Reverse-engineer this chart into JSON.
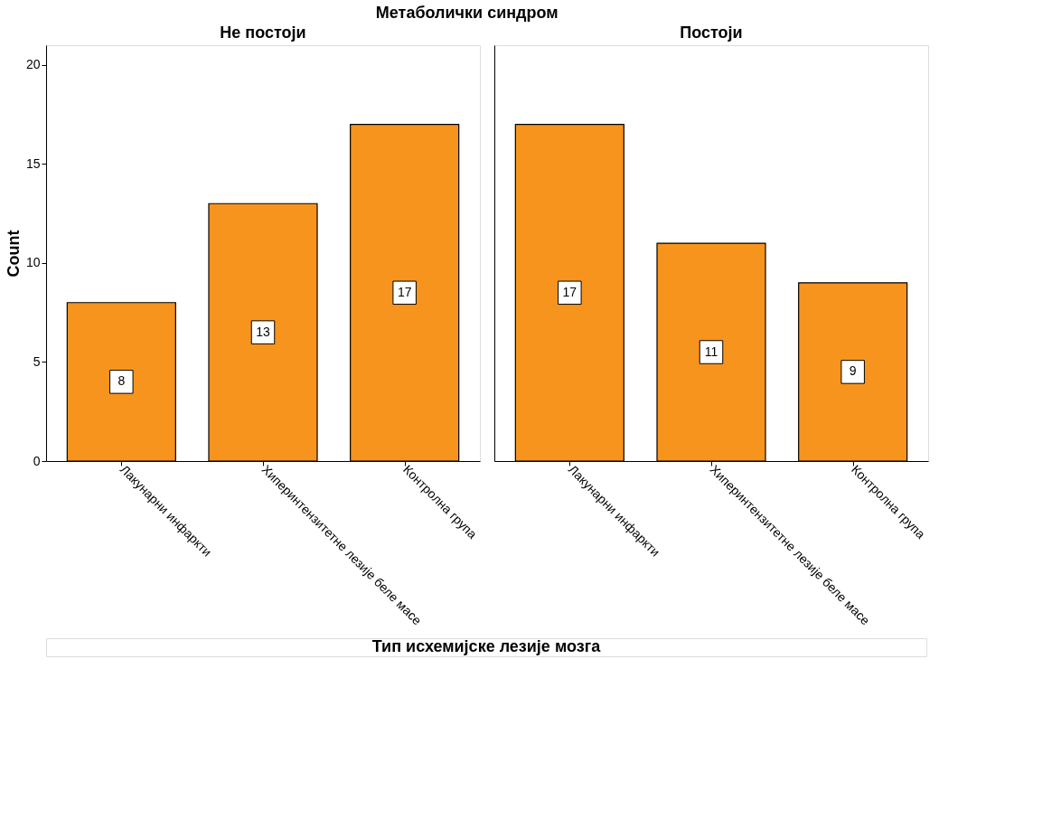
{
  "chart_data": [
    {
      "type": "bar",
      "title": "Метаболички синдром",
      "subtitle": "Не постоји",
      "xlabel": "Тип исхемијске лезије мозга",
      "ylabel": "Count",
      "categories": [
        "Лакунарни инфаркти",
        "Хиперинтензитетне лезије беле масе",
        "Контролна група"
      ],
      "values": [
        8,
        13,
        17
      ],
      "color": "#f7941d",
      "ylim": [
        0,
        21
      ],
      "yticks": [
        0,
        5,
        10,
        15,
        20
      ],
      "grid": false,
      "data_labels": true
    },
    {
      "type": "bar",
      "subtitle": "Постоји",
      "categories": [
        "Лакунарни инфаркти",
        "Хиперинтензитетне лезије беле масе",
        "Контролна група"
      ],
      "values": [
        17,
        11,
        9
      ],
      "color": "#f7941d",
      "ylim": [
        0,
        21
      ],
      "yticks": [
        0,
        5,
        10,
        15,
        20
      ],
      "grid": false,
      "data_labels": true,
      "tick_labels": "x"
    }
  ]
}
